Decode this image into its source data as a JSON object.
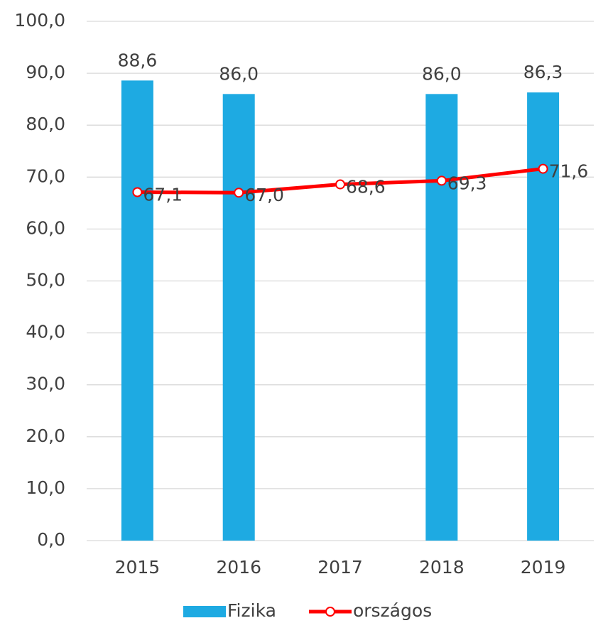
{
  "chart_data": {
    "type": "bar",
    "categories": [
      "2015",
      "2016",
      "2017",
      "2018",
      "2019"
    ],
    "series": [
      {
        "name": "Fizika",
        "type": "bar",
        "color": "#1eaae2",
        "values": [
          88.6,
          86.0,
          null,
          86.0,
          86.3
        ],
        "value_labels": [
          "88,6",
          "86,0",
          null,
          "86,0",
          "86,3"
        ]
      },
      {
        "name": "országos",
        "type": "line",
        "color": "#ff0000",
        "marker_fill": "#ffffff",
        "values": [
          67.1,
          67.0,
          68.6,
          69.3,
          71.6
        ],
        "value_labels": [
          "67,1",
          "67,0",
          "68,6",
          "69,3",
          "71,6"
        ]
      }
    ],
    "ylim": [
      0,
      100
    ],
    "yticks": [
      {
        "value": 0,
        "label": "0,0"
      },
      {
        "value": 10,
        "label": "10,0"
      },
      {
        "value": 20,
        "label": "20,0"
      },
      {
        "value": 30,
        "label": "30,0"
      },
      {
        "value": 40,
        "label": "40,0"
      },
      {
        "value": 50,
        "label": "50,0"
      },
      {
        "value": 60,
        "label": "60,0"
      },
      {
        "value": 70,
        "label": "70,0"
      },
      {
        "value": 80,
        "label": "80,0"
      },
      {
        "value": 90,
        "label": "90,0"
      },
      {
        "value": 100,
        "label": "100,0"
      }
    ],
    "grid": true,
    "legend": "bottom"
  }
}
